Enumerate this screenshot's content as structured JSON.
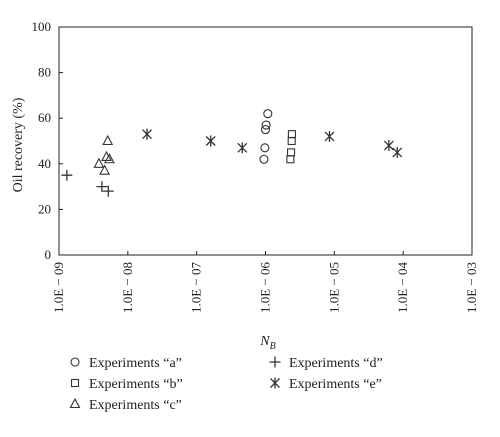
{
  "chart_data": {
    "type": "scatter",
    "x_scale": "log",
    "x_ticks": [
      1e-09,
      1e-08,
      1e-07,
      1e-06,
      1e-05,
      0.0001,
      0.001
    ],
    "x_tick_labels": [
      "1.0E − 09",
      "1.0E − 08",
      "1.0E − 07",
      "1.0E − 06",
      "1.0E − 05",
      "1.0E − 04",
      "1.0E − 03"
    ],
    "xlim": [
      1e-09,
      0.001
    ],
    "y_ticks": [
      0,
      20,
      40,
      60,
      80,
      100
    ],
    "y_tick_labels": [
      "0",
      "20",
      "40",
      "60",
      "80",
      "100"
    ],
    "ylim": [
      0,
      100
    ],
    "xlabel": "N",
    "xlabel_sub": "B",
    "ylabel": "Oil recovery (%)",
    "grid": false,
    "legend_position": "bottom",
    "series": [
      {
        "name": "Experiments “a”",
        "marker": "circle",
        "x": [
          9.5e-07,
          9.8e-07,
          1e-06,
          1.02e-06,
          1.08e-06
        ],
        "y": [
          42,
          47,
          55,
          57,
          62
        ]
      },
      {
        "name": "Experiments “b”",
        "marker": "square",
        "x": [
          2.3e-06,
          2.35e-06,
          2.4e-06,
          2.42e-06
        ],
        "y": [
          42,
          45,
          50,
          53
        ]
      },
      {
        "name": "Experiments “c”",
        "marker": "triangle",
        "x": [
          3.8e-09,
          4.6e-09,
          4.9e-09,
          5.1e-09,
          5.4e-09
        ],
        "y": [
          40,
          37,
          43,
          50,
          42
        ]
      },
      {
        "name": "Experiments “d”",
        "marker": "plus",
        "x": [
          1.3e-09,
          4.2e-09,
          5.2e-09
        ],
        "y": [
          35,
          30,
          28
        ]
      },
      {
        "name": "Experiments “e”",
        "marker": "asterisk",
        "x": [
          1.9e-08,
          1.6e-07,
          4.6e-07,
          8.5e-06,
          6.2e-05,
          8.2e-05
        ],
        "y": [
          53,
          50,
          47,
          52,
          48,
          45
        ]
      }
    ]
  }
}
